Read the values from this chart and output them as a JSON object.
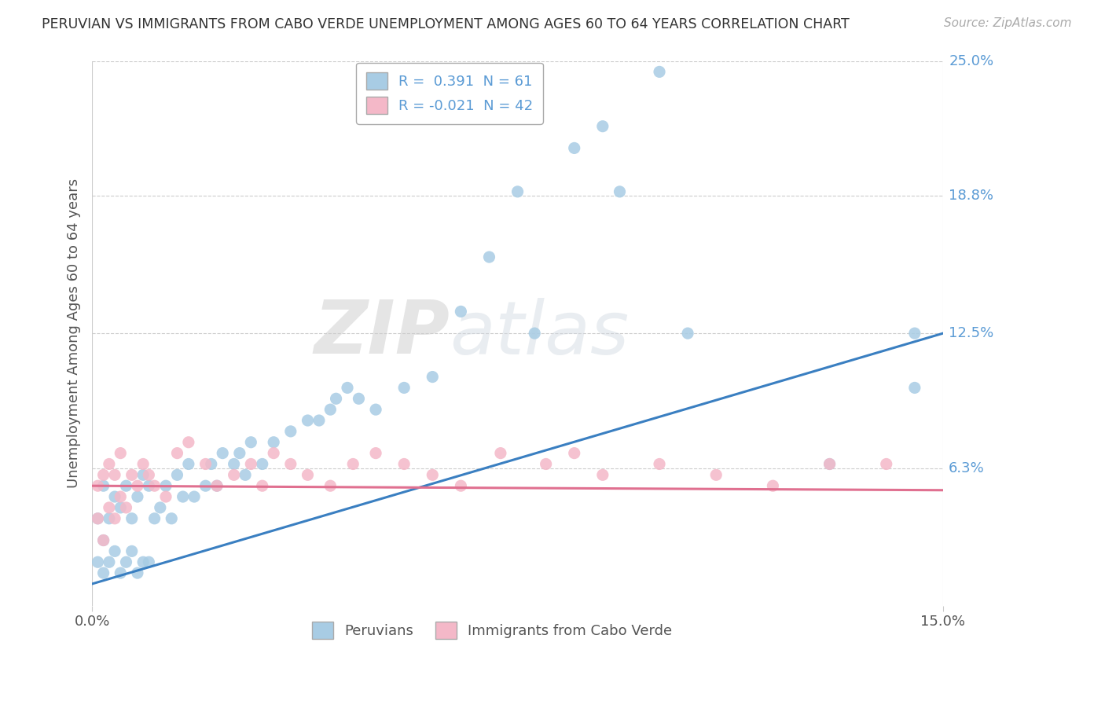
{
  "title": "PERUVIAN VS IMMIGRANTS FROM CABO VERDE UNEMPLOYMENT AMONG AGES 60 TO 64 YEARS CORRELATION CHART",
  "source": "Source: ZipAtlas.com",
  "ylabel": "Unemployment Among Ages 60 to 64 years",
  "xlim": [
    0.0,
    0.15
  ],
  "ylim": [
    0.0,
    0.25
  ],
  "xtick_labels": [
    "0.0%",
    "15.0%"
  ],
  "ytick_labels": [
    "6.3%",
    "12.5%",
    "18.8%",
    "25.0%"
  ],
  "ytick_values": [
    0.063,
    0.125,
    0.188,
    0.25
  ],
  "blue_R": 0.391,
  "blue_N": 61,
  "pink_R": -0.021,
  "pink_N": 42,
  "blue_color": "#a8cce4",
  "pink_color": "#f4b8c8",
  "blue_line_color": "#3a7fc1",
  "pink_line_color": "#e07090",
  "watermark_zip": "ZIP",
  "watermark_atlas": "atlas",
  "legend_blue_label": "Peruvians",
  "legend_pink_label": "Immigrants from Cabo Verde",
  "blue_trend_x": [
    0.0,
    0.15
  ],
  "blue_trend_y": [
    0.01,
    0.125
  ],
  "pink_trend_x": [
    0.0,
    0.15
  ],
  "pink_trend_y": [
    0.055,
    0.053
  ],
  "blue_pts_x": [
    0.001,
    0.001,
    0.002,
    0.002,
    0.002,
    0.003,
    0.003,
    0.004,
    0.004,
    0.005,
    0.005,
    0.006,
    0.006,
    0.007,
    0.007,
    0.008,
    0.008,
    0.009,
    0.009,
    0.01,
    0.01,
    0.011,
    0.012,
    0.013,
    0.014,
    0.015,
    0.016,
    0.017,
    0.018,
    0.02,
    0.021,
    0.022,
    0.023,
    0.025,
    0.026,
    0.027,
    0.028,
    0.03,
    0.032,
    0.035,
    0.038,
    0.04,
    0.042,
    0.043,
    0.045,
    0.047,
    0.05,
    0.055,
    0.06,
    0.065,
    0.07,
    0.075,
    0.078,
    0.085,
    0.09,
    0.093,
    0.1,
    0.105,
    0.13,
    0.145,
    0.145
  ],
  "blue_pts_y": [
    0.02,
    0.04,
    0.015,
    0.03,
    0.055,
    0.02,
    0.04,
    0.025,
    0.05,
    0.015,
    0.045,
    0.02,
    0.055,
    0.025,
    0.04,
    0.015,
    0.05,
    0.02,
    0.06,
    0.02,
    0.055,
    0.04,
    0.045,
    0.055,
    0.04,
    0.06,
    0.05,
    0.065,
    0.05,
    0.055,
    0.065,
    0.055,
    0.07,
    0.065,
    0.07,
    0.06,
    0.075,
    0.065,
    0.075,
    0.08,
    0.085,
    0.085,
    0.09,
    0.095,
    0.1,
    0.095,
    0.09,
    0.1,
    0.105,
    0.135,
    0.16,
    0.19,
    0.125,
    0.21,
    0.22,
    0.19,
    0.245,
    0.125,
    0.065,
    0.1,
    0.125
  ],
  "pink_pts_x": [
    0.001,
    0.001,
    0.002,
    0.002,
    0.003,
    0.003,
    0.004,
    0.004,
    0.005,
    0.005,
    0.006,
    0.007,
    0.008,
    0.009,
    0.01,
    0.011,
    0.013,
    0.015,
    0.017,
    0.02,
    0.022,
    0.025,
    0.028,
    0.03,
    0.032,
    0.035,
    0.038,
    0.042,
    0.046,
    0.05,
    0.055,
    0.06,
    0.065,
    0.072,
    0.08,
    0.085,
    0.09,
    0.1,
    0.11,
    0.12,
    0.13,
    0.14
  ],
  "pink_pts_y": [
    0.04,
    0.055,
    0.03,
    0.06,
    0.045,
    0.065,
    0.04,
    0.06,
    0.05,
    0.07,
    0.045,
    0.06,
    0.055,
    0.065,
    0.06,
    0.055,
    0.05,
    0.07,
    0.075,
    0.065,
    0.055,
    0.06,
    0.065,
    0.055,
    0.07,
    0.065,
    0.06,
    0.055,
    0.065,
    0.07,
    0.065,
    0.06,
    0.055,
    0.07,
    0.065,
    0.07,
    0.06,
    0.065,
    0.06,
    0.055,
    0.065,
    0.065
  ]
}
